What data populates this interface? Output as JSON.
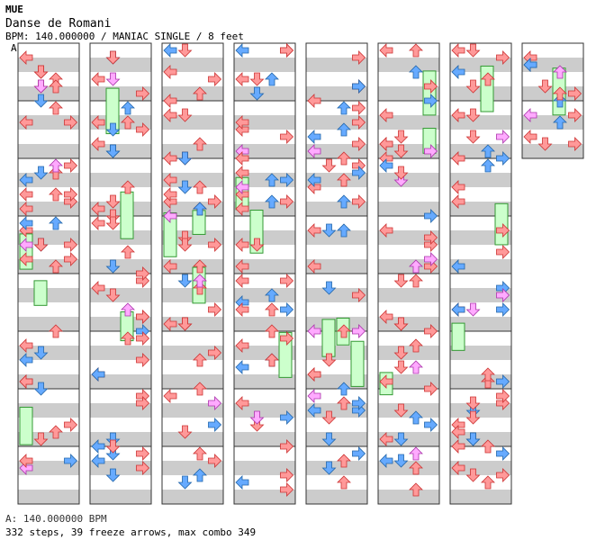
{
  "header": {
    "brand": "MUE",
    "title": "Danse de Romani",
    "meta": "BPM: 140.000000 / MANIAC SINGLE / 8 feet",
    "marker": "A"
  },
  "footer": {
    "bpm_line": "A: 140.000000 BPM",
    "stats": "332 steps, 39 freeze arrows, max combo 349"
  },
  "style": {
    "stripe": "#cccccc",
    "border": "#333333",
    "arrow_red": "#ff9999",
    "arrow_blue": "#66aaff",
    "arrow_pink": "#ffaaff",
    "freeze_green": "#ccffcc"
  },
  "chart_data": {
    "type": "step-chart",
    "columns": 8,
    "measures_per_column": 8,
    "lanes": [
      "left",
      "down",
      "up",
      "right"
    ],
    "notes": [
      [
        0,
        "L",
        1
      ],
      [
        0,
        "U",
        1
      ],
      [
        0,
        "R",
        1
      ],
      [
        0,
        "D",
        1
      ],
      [
        1,
        "L",
        1
      ],
      [
        1,
        "R",
        1
      ],
      [
        1,
        "D",
        1
      ],
      [
        1,
        "U",
        1
      ],
      [
        2,
        "U",
        1
      ],
      [
        2,
        "R",
        1
      ],
      [
        2,
        "L",
        1
      ],
      [
        2,
        "D",
        1
      ],
      [
        3,
        "R",
        1
      ],
      [
        3,
        "U",
        1
      ],
      [
        3,
        "L",
        1
      ],
      [
        3,
        "D",
        1
      ]
    ]
  }
}
